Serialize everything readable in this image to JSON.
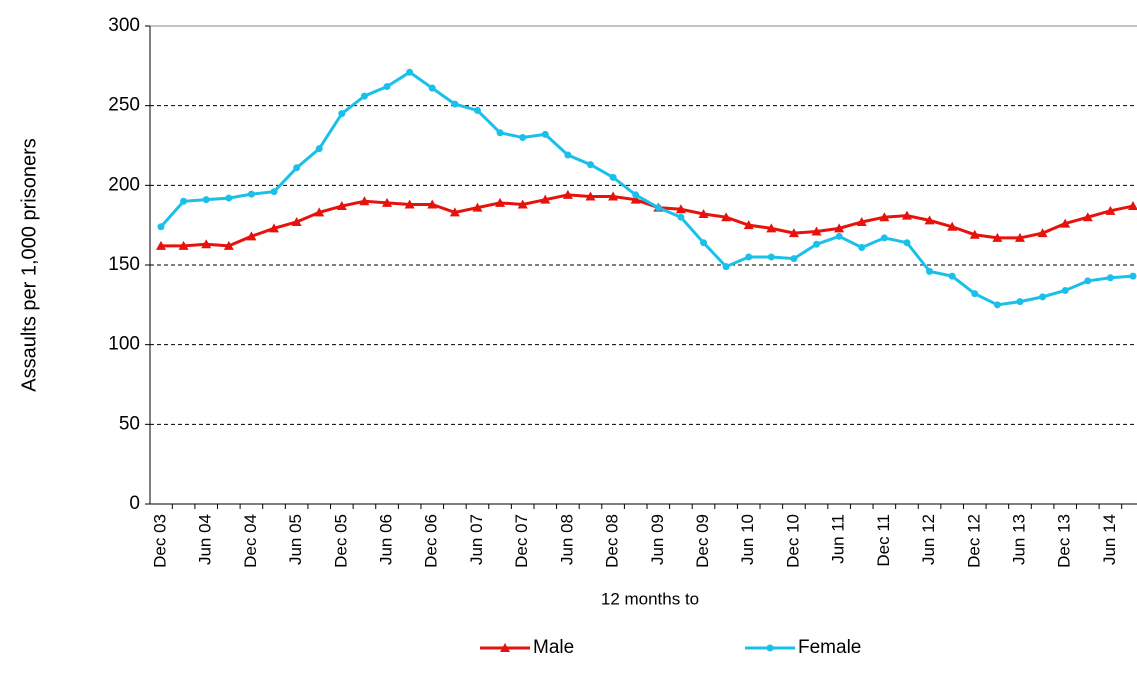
{
  "chart_data": {
    "type": "line",
    "x_label": "12 months to",
    "y_label": "Assaults per 1,000 prisoners",
    "categories": [
      "Dec 03",
      null,
      "Jun 04",
      null,
      "Dec 04",
      null,
      "Jun 05",
      null,
      "Dec 05",
      null,
      "Jun 06",
      null,
      "Dec 06",
      null,
      "Jun 07",
      null,
      "Dec 07",
      null,
      "Jun 08",
      null,
      "Dec 08",
      null,
      "Jun 09",
      null,
      "Dec 09",
      null,
      "Jun 10",
      null,
      "Dec 10",
      null,
      "Jun 11",
      null,
      "Dec 11",
      null,
      "Jun 12",
      null,
      "Dec 12",
      null,
      "Jun 13",
      null,
      "Dec 13",
      null,
      "Jun 14",
      null
    ],
    "series": [
      {
        "name": "Male",
        "color": "#e8120c",
        "marker": "triangle",
        "values": [
          162,
          162,
          163,
          162,
          168,
          173,
          177,
          183,
          187,
          190,
          189,
          188,
          188,
          183,
          186,
          189,
          188,
          191,
          194,
          193,
          193,
          191,
          186,
          185,
          182,
          180,
          175,
          173,
          170,
          171,
          173,
          177,
          180,
          181,
          178,
          174,
          169,
          167,
          167,
          170,
          176,
          180,
          184,
          187
        ]
      },
      {
        "name": "Female",
        "color": "#19c1ea",
        "marker": "circle",
        "values": [
          174,
          190,
          191,
          192,
          194.5,
          196,
          211,
          223,
          245,
          256,
          262,
          271,
          261,
          251,
          247,
          233,
          230,
          232,
          219,
          213,
          205,
          194,
          186,
          180,
          164,
          149,
          155,
          155,
          154,
          163,
          168,
          161,
          167,
          164,
          146,
          143,
          132,
          125,
          127,
          130,
          134,
          140,
          142,
          143
        ]
      }
    ],
    "ylim": [
      0,
      300
    ],
    "yticks": [
      0,
      50,
      100,
      150,
      200,
      250,
      300
    ],
    "grid": true,
    "legend": "bottom"
  }
}
